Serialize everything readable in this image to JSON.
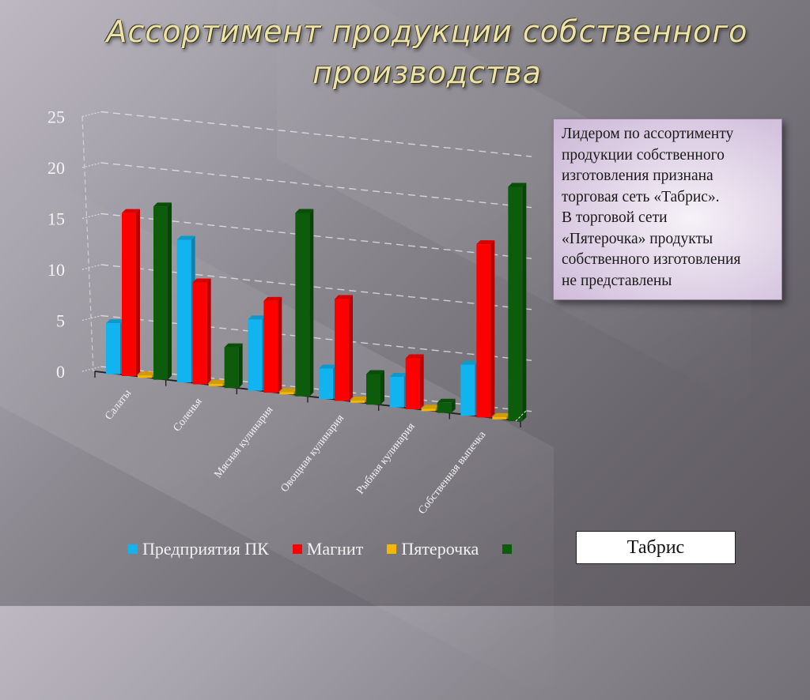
{
  "slide": {
    "title_lines": [
      "Ассортимент продукции собственного",
      "производства"
    ],
    "colors": {
      "title": "#ece3a8",
      "background_light": "#bdb8c2",
      "background_dark": "#5b575d"
    }
  },
  "note": {
    "lines": [
      "Лидером по ассортименту",
      "продукции собственного",
      "изготовления признана",
      "торговая сеть «Табрис».",
      "В торговой сети",
      "«Пятерочка» продукты",
      "собственного изготовления",
      "не представлены"
    ]
  },
  "legend": {
    "items": [
      {
        "label": "Предприятия ПК",
        "color": "#12b4ef"
      },
      {
        "label": "Магнит",
        "color": "#ff0000"
      },
      {
        "label": "Пятерочка",
        "color": "#f5b800"
      },
      {
        "label": "",
        "color": "#0c5c0c"
      }
    ],
    "highlight_box_label": "Табрис"
  },
  "chart_data": {
    "type": "bar",
    "style": "3d-clustered-column",
    "title": "Ассортимент продукции собственного производства",
    "xlabel": "",
    "ylabel": "",
    "ylim": [
      0,
      25
    ],
    "yticks": [
      0,
      5,
      10,
      15,
      20,
      25
    ],
    "grid": true,
    "legend_position": "bottom",
    "categories": [
      "Салаты",
      "Соленья",
      "Мясная кулинария",
      "Овощная кулинария",
      "Рыбная кулинария",
      "Собственная выпечка"
    ],
    "series": [
      {
        "name": "Предприятия ПК",
        "color": "#12b4ef",
        "values": [
          5,
          14,
          7,
          3,
          3,
          5
        ]
      },
      {
        "name": "Магнит",
        "color": "#ff0000",
        "values": [
          16,
          10,
          9,
          10,
          5,
          17
        ]
      },
      {
        "name": "Пятерочка",
        "color": "#f5b800",
        "values": [
          0,
          0,
          0,
          0,
          0,
          0
        ]
      },
      {
        "name": "Табрис",
        "color": "#0c5c0c",
        "values": [
          17,
          4,
          18,
          3,
          1,
          23
        ]
      }
    ]
  }
}
